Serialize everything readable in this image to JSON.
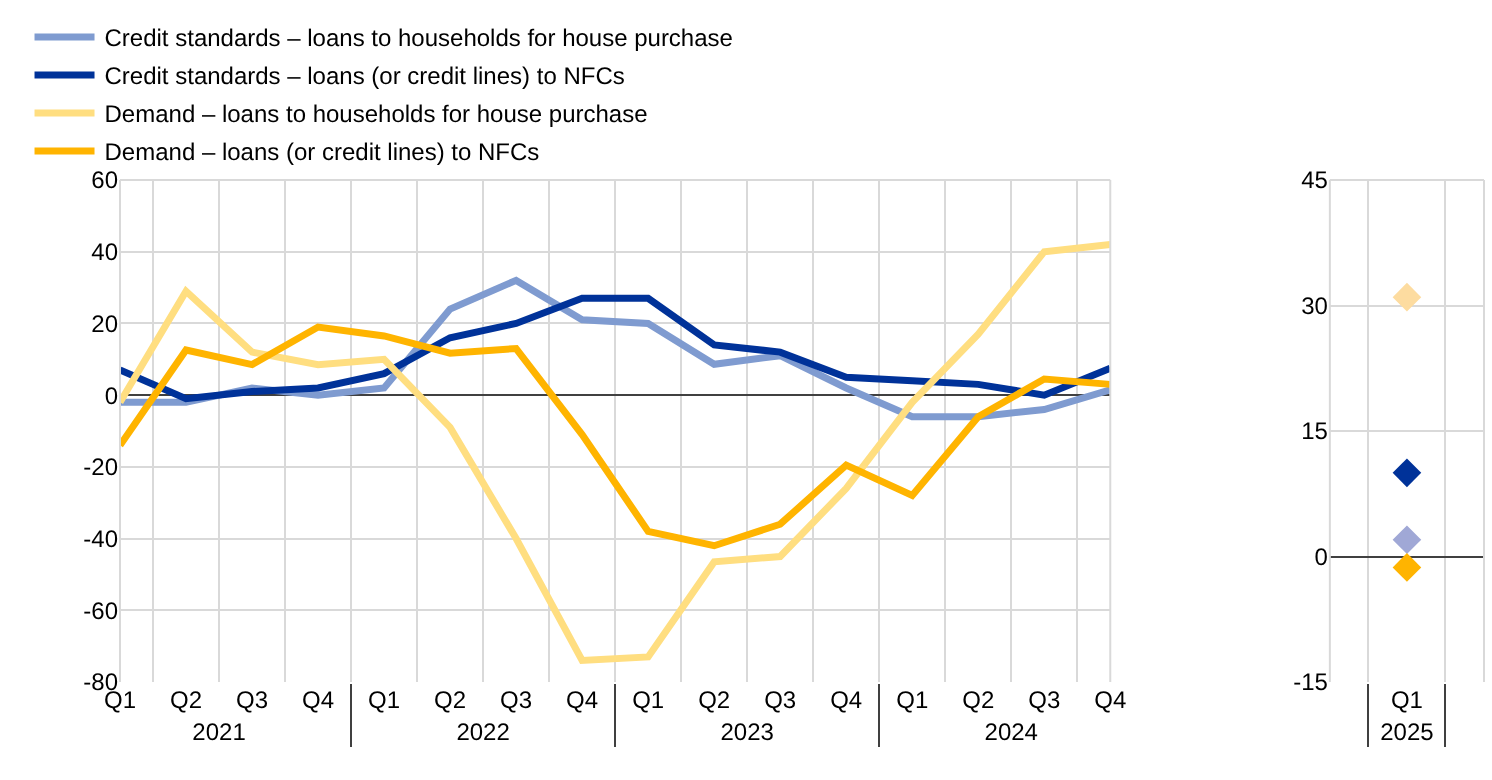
{
  "chart_data": [
    {
      "type": "line",
      "categories": [
        "Q1",
        "Q2",
        "Q3",
        "Q4",
        "Q1",
        "Q2",
        "Q3",
        "Q4",
        "Q1",
        "Q2",
        "Q3",
        "Q4",
        "Q1",
        "Q2",
        "Q3",
        "Q4"
      ],
      "annotations": [
        "2021",
        "2022",
        "2023",
        "2024"
      ],
      "series": [
        {
          "name": "Credit standards – loans to households for house purchase",
          "color": "#7f9bd0",
          "values": [
            -2,
            -2,
            2,
            0,
            2,
            24,
            32,
            21,
            20,
            8.6,
            11,
            2,
            -6,
            -6,
            -4,
            1.5
          ]
        },
        {
          "name": "Credit standards – loans (or credit lines) to NFCs",
          "color": "#003299",
          "values": [
            7,
            -1,
            1,
            2,
            6,
            16,
            20,
            27,
            27,
            14,
            12,
            5,
            4,
            3,
            0,
            7.5
          ]
        },
        {
          "name": "Demand – loans to households for house purchase",
          "color": "#ffde80",
          "values": [
            -2,
            29,
            12,
            8.5,
            10,
            -9,
            -40,
            -74,
            -73,
            -46.5,
            -45,
            -26,
            -2,
            17,
            40,
            42
          ]
        },
        {
          "name": "Demand – loans (or credit lines) to NFCs",
          "color": "#ffb400",
          "values": [
            -14,
            12.6,
            8.5,
            19,
            16.5,
            11.7,
            13,
            -11,
            -38,
            -42,
            -36,
            -19.5,
            -28,
            -6,
            4.5,
            3
          ]
        }
      ],
      "ylim": [
        -80,
        60
      ],
      "yticks": [
        -80,
        -60,
        -40,
        -20,
        0,
        20,
        40,
        60
      ],
      "grid": true,
      "legend": "top left",
      "marker": "none",
      "line_style": "solid"
    },
    {
      "type": "scatter",
      "categories": [
        "Q1"
      ],
      "annotations": [
        "2025"
      ],
      "series": [
        {
          "color": "#fddca0",
          "values": [
            31
          ]
        },
        {
          "color": "#003299",
          "values": [
            10
          ]
        },
        {
          "color": "#a0a8d6",
          "values": [
            2
          ]
        },
        {
          "color": "#ffb400",
          "values": [
            -1.3
          ]
        }
      ],
      "ylim": [
        -15,
        45
      ],
      "yticks": [
        -15,
        0,
        15,
        30,
        45
      ],
      "grid": true,
      "legend": false,
      "marker": "diamond"
    }
  ]
}
